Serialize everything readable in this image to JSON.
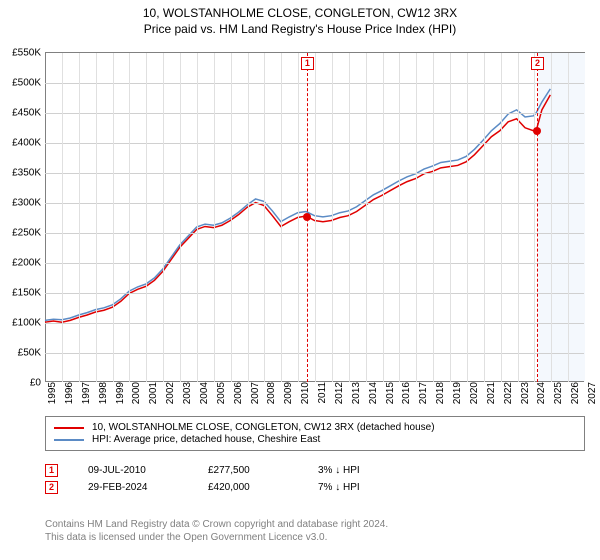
{
  "title_line1": "10, WOLSTANHOLME CLOSE, CONGLETON, CW12 3RX",
  "title_line2": "Price paid vs. HM Land Registry's House Price Index (HPI)",
  "chart": {
    "x_start_year": 1995,
    "x_end_year": 2027,
    "x_tick_every": 1,
    "y_min": 0,
    "y_max": 550000,
    "y_tick_step": 50000,
    "y_prefix": "£",
    "y_suffix": "K",
    "y_divisor": 1000,
    "future_from_year": 2024.2,
    "grid_color": "#d0d0d0",
    "series": [
      {
        "name": "red",
        "color": "#e00000",
        "width": 1.5,
        "points": [
          [
            1995,
            100000
          ],
          [
            1995.5,
            102000
          ],
          [
            1996,
            100000
          ],
          [
            1996.5,
            103000
          ],
          [
            1997,
            108000
          ],
          [
            1997.5,
            112000
          ],
          [
            1998,
            117000
          ],
          [
            1998.5,
            120000
          ],
          [
            1999,
            125000
          ],
          [
            1999.5,
            135000
          ],
          [
            2000,
            148000
          ],
          [
            2000.5,
            155000
          ],
          [
            2001,
            160000
          ],
          [
            2001.5,
            170000
          ],
          [
            2002,
            185000
          ],
          [
            2002.5,
            205000
          ],
          [
            2003,
            225000
          ],
          [
            2003.5,
            240000
          ],
          [
            2004,
            255000
          ],
          [
            2004.5,
            260000
          ],
          [
            2005,
            258000
          ],
          [
            2005.5,
            262000
          ],
          [
            2006,
            270000
          ],
          [
            2006.5,
            280000
          ],
          [
            2007,
            292000
          ],
          [
            2007.5,
            300000
          ],
          [
            2008,
            295000
          ],
          [
            2008.5,
            278000
          ],
          [
            2009,
            260000
          ],
          [
            2009.5,
            268000
          ],
          [
            2010,
            275000
          ],
          [
            2010.5,
            277500
          ],
          [
            2011,
            270000
          ],
          [
            2011.5,
            268000
          ],
          [
            2012,
            270000
          ],
          [
            2012.5,
            275000
          ],
          [
            2013,
            278000
          ],
          [
            2013.5,
            285000
          ],
          [
            2014,
            295000
          ],
          [
            2014.5,
            305000
          ],
          [
            2015,
            312000
          ],
          [
            2015.5,
            320000
          ],
          [
            2016,
            328000
          ],
          [
            2016.5,
            335000
          ],
          [
            2017,
            340000
          ],
          [
            2017.5,
            348000
          ],
          [
            2018,
            352000
          ],
          [
            2018.5,
            358000
          ],
          [
            2019,
            360000
          ],
          [
            2019.5,
            362000
          ],
          [
            2020,
            368000
          ],
          [
            2020.5,
            380000
          ],
          [
            2021,
            395000
          ],
          [
            2021.5,
            410000
          ],
          [
            2022,
            420000
          ],
          [
            2022.5,
            435000
          ],
          [
            2023,
            440000
          ],
          [
            2023.5,
            425000
          ],
          [
            2024,
            420000
          ],
          [
            2024.16,
            420000
          ],
          [
            2024.5,
            455000
          ],
          [
            2025,
            480000
          ]
        ]
      },
      {
        "name": "blue",
        "color": "#5b8bc5",
        "width": 1.5,
        "points": [
          [
            1995,
            103000
          ],
          [
            1995.5,
            105000
          ],
          [
            1996,
            104000
          ],
          [
            1996.5,
            107000
          ],
          [
            1997,
            112000
          ],
          [
            1997.5,
            116000
          ],
          [
            1998,
            121000
          ],
          [
            1998.5,
            124000
          ],
          [
            1999,
            129000
          ],
          [
            1999.5,
            139000
          ],
          [
            2000,
            152000
          ],
          [
            2000.5,
            159000
          ],
          [
            2001,
            164000
          ],
          [
            2001.5,
            174000
          ],
          [
            2002,
            189000
          ],
          [
            2002.5,
            209000
          ],
          [
            2003,
            229000
          ],
          [
            2003.5,
            244000
          ],
          [
            2004,
            259000
          ],
          [
            2004.5,
            264000
          ],
          [
            2005,
            262000
          ],
          [
            2005.5,
            266000
          ],
          [
            2006,
            274000
          ],
          [
            2006.5,
            284000
          ],
          [
            2007,
            296000
          ],
          [
            2007.5,
            306000
          ],
          [
            2008,
            302000
          ],
          [
            2008.5,
            286000
          ],
          [
            2009,
            268000
          ],
          [
            2009.5,
            276000
          ],
          [
            2010,
            283000
          ],
          [
            2010.5,
            285000
          ],
          [
            2011,
            278000
          ],
          [
            2011.5,
            276000
          ],
          [
            2012,
            278000
          ],
          [
            2012.5,
            283000
          ],
          [
            2013,
            286000
          ],
          [
            2013.5,
            293000
          ],
          [
            2014,
            303000
          ],
          [
            2014.5,
            313000
          ],
          [
            2015,
            320000
          ],
          [
            2015.5,
            328000
          ],
          [
            2016,
            336000
          ],
          [
            2016.5,
            343000
          ],
          [
            2017,
            348000
          ],
          [
            2017.5,
            356000
          ],
          [
            2018,
            361000
          ],
          [
            2018.5,
            367000
          ],
          [
            2019,
            369000
          ],
          [
            2019.5,
            371000
          ],
          [
            2020,
            377000
          ],
          [
            2020.5,
            389000
          ],
          [
            2021,
            404000
          ],
          [
            2021.5,
            420000
          ],
          [
            2022,
            432000
          ],
          [
            2022.5,
            448000
          ],
          [
            2023,
            455000
          ],
          [
            2023.5,
            443000
          ],
          [
            2024,
            445000
          ],
          [
            2024.16,
            450000
          ],
          [
            2024.5,
            468000
          ],
          [
            2025,
            490000
          ]
        ]
      }
    ],
    "vlines": [
      {
        "year": 2010.52,
        "color": "#e00000",
        "label": "1"
      },
      {
        "year": 2024.16,
        "color": "#e00000",
        "label": "2"
      }
    ],
    "dots": [
      {
        "year": 2010.52,
        "value": 277500,
        "color": "#e00000"
      },
      {
        "year": 2024.16,
        "value": 420000,
        "color": "#e00000"
      }
    ]
  },
  "legend": {
    "items": [
      {
        "color": "#e00000",
        "label": "10, WOLSTANHOLME CLOSE, CONGLETON, CW12 3RX (detached house)"
      },
      {
        "color": "#5b8bc5",
        "label": "HPI: Average price, detached house, Cheshire East"
      }
    ]
  },
  "transactions": [
    {
      "marker": "1",
      "color": "#e00000",
      "date": "09-JUL-2010",
      "price": "£277,500",
      "diff": "3% ↓ HPI"
    },
    {
      "marker": "2",
      "color": "#e00000",
      "date": "29-FEB-2024",
      "price": "£420,000",
      "diff": "7% ↓ HPI"
    }
  ],
  "footer": {
    "line1": "Contains HM Land Registry data © Crown copyright and database right 2024.",
    "line2": "This data is licensed under the Open Government Licence v3.0."
  }
}
